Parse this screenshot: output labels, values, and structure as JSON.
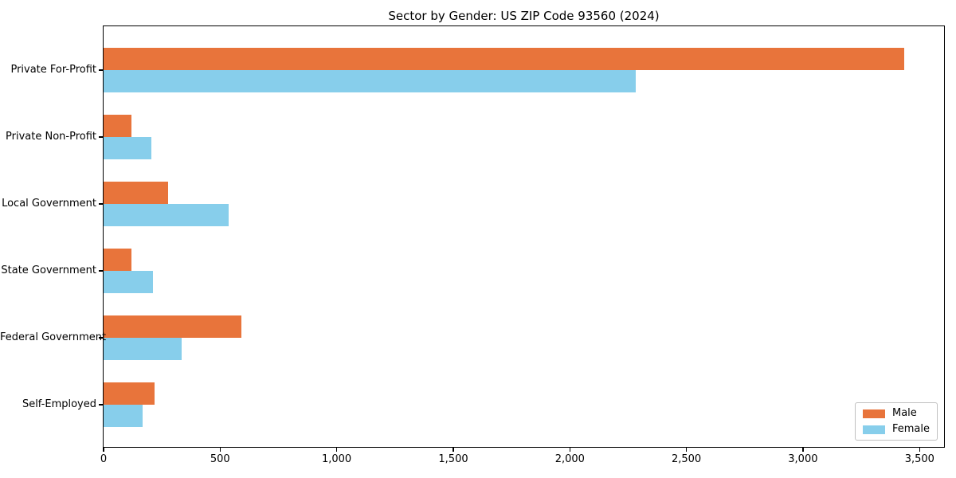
{
  "window": {
    "background": "#ffffff"
  },
  "chart_data": {
    "type": "bar",
    "orientation": "horizontal",
    "title": "Sector by Gender: US ZIP Code 93560 (2024)",
    "xlabel": "",
    "ylabel": "",
    "categories": [
      "Private For-Profit",
      "Private Non-Profit",
      "Local Government",
      "State Government",
      "Federal Government",
      "Self-Employed"
    ],
    "series": [
      {
        "name": "Male",
        "color": "#e8743b",
        "values": [
          3434,
          122,
          278,
          122,
          592,
          220
        ]
      },
      {
        "name": "Female",
        "color": "#87ceeb",
        "values": [
          2283,
          206,
          539,
          214,
          336,
          168
        ]
      }
    ],
    "xlim": [
      0,
      3605
    ],
    "xticks": [
      0,
      500,
      1000,
      1500,
      2000,
      2500,
      3000,
      3500
    ],
    "xtick_labels": [
      "0",
      "500",
      "1,000",
      "1,500",
      "2,000",
      "2,500",
      "3,000",
      "3,500"
    ],
    "grid": false,
    "legend_position": "lower right",
    "plot_border_color": "#000000"
  },
  "legend": {
    "items": [
      {
        "label": "Male",
        "color": "#e8743b"
      },
      {
        "label": "Female",
        "color": "#87ceeb"
      }
    ]
  }
}
